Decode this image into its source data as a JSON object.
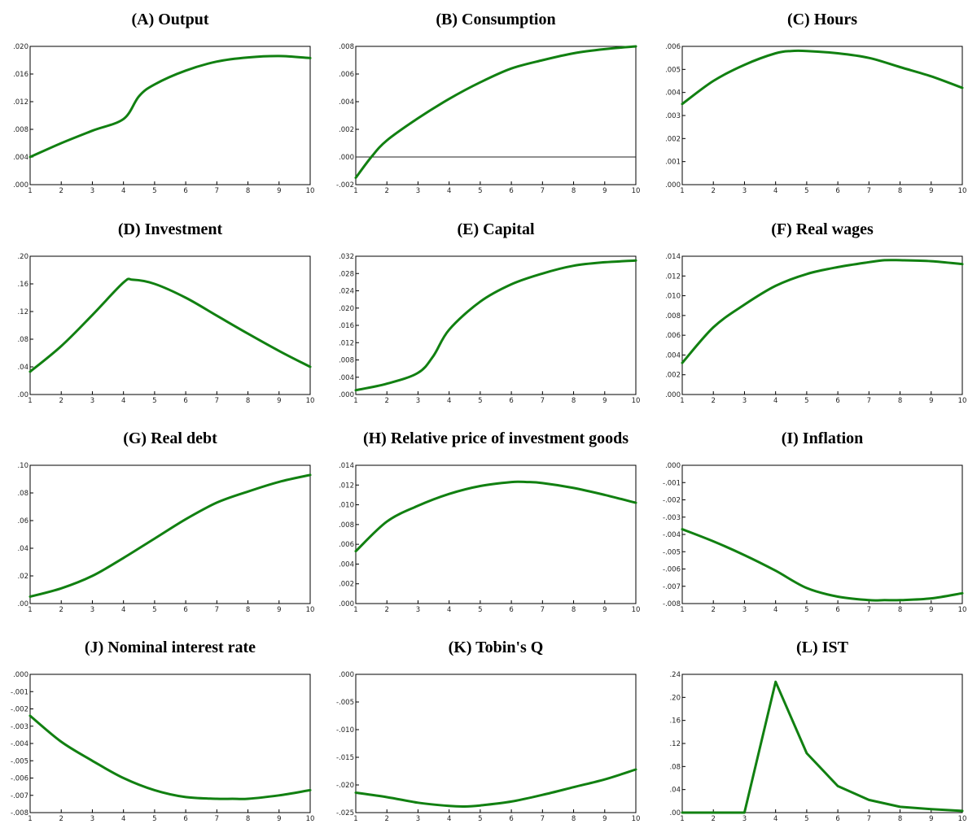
{
  "chart_data": [
    {
      "type": "line",
      "title": "(A) Output",
      "x": [
        1,
        2,
        3,
        4,
        4.5,
        5,
        6,
        7,
        8,
        9,
        10
      ],
      "y": [
        0.004,
        0.006,
        0.0078,
        0.0095,
        0.0128,
        0.0145,
        0.0165,
        0.0178,
        0.0184,
        0.0186,
        0.0183
      ],
      "xticks": [
        "1",
        "2",
        "3",
        "4",
        "5",
        "6",
        "7",
        "8",
        "9",
        "10"
      ],
      "yticks": [
        ".000",
        ".004",
        ".008",
        ".012",
        ".016",
        ".020"
      ],
      "ylim": [
        0,
        0.02
      ],
      "zero_line": false
    },
    {
      "type": "line",
      "title": "(B) Consumption",
      "x": [
        1,
        1.5,
        2,
        3,
        4,
        5,
        6,
        7,
        8,
        9,
        10
      ],
      "y": [
        -0.0015,
        0.0,
        0.0012,
        0.0028,
        0.0042,
        0.0054,
        0.0064,
        0.007,
        0.0075,
        0.0078,
        0.008
      ],
      "xticks": [
        "1",
        "2",
        "3",
        "4",
        "5",
        "6",
        "7",
        "8",
        "9",
        "10"
      ],
      "yticks": [
        "-.002",
        ".000",
        ".002",
        ".004",
        ".006",
        ".008"
      ],
      "ylim": [
        -0.002,
        0.008
      ],
      "zero_line": true
    },
    {
      "type": "line",
      "title": "(C) Hours",
      "x": [
        1,
        2,
        3,
        4,
        4.5,
        5,
        6,
        7,
        8,
        9,
        10
      ],
      "y": [
        0.0035,
        0.0045,
        0.0052,
        0.0057,
        0.0058,
        0.0058,
        0.0057,
        0.0055,
        0.0051,
        0.0047,
        0.0042
      ],
      "xticks": [
        "1",
        "2",
        "3",
        "4",
        "5",
        "6",
        "7",
        "8",
        "9",
        "10"
      ],
      "yticks": [
        ".000",
        ".001",
        ".002",
        ".003",
        ".004",
        ".005",
        ".006"
      ],
      "ylim": [
        0,
        0.006
      ],
      "zero_line": false
    },
    {
      "type": "line",
      "title": "(D) Investment",
      "x": [
        1,
        2,
        3,
        4,
        4.3,
        5,
        6,
        7,
        8,
        9,
        10
      ],
      "y": [
        0.033,
        0.07,
        0.115,
        0.162,
        0.166,
        0.16,
        0.14,
        0.114,
        0.088,
        0.063,
        0.04
      ],
      "xticks": [
        "1",
        "2",
        "3",
        "4",
        "5",
        "6",
        "7",
        "8",
        "9",
        "10"
      ],
      "yticks": [
        ".00",
        ".04",
        ".08",
        ".12",
        ".16",
        ".20"
      ],
      "ylim": [
        0,
        0.2
      ],
      "zero_line": false
    },
    {
      "type": "line",
      "title": "(E) Capital",
      "x": [
        1,
        2,
        3,
        3.5,
        4,
        5,
        6,
        7,
        8,
        9,
        10
      ],
      "y": [
        0.001,
        0.0025,
        0.005,
        0.009,
        0.015,
        0.0215,
        0.0255,
        0.028,
        0.0298,
        0.0306,
        0.031
      ],
      "xticks": [
        "1",
        "2",
        "3",
        "4",
        "5",
        "6",
        "7",
        "8",
        "9",
        "10"
      ],
      "yticks": [
        ".000",
        ".004",
        ".008",
        ".012",
        ".016",
        ".020",
        ".024",
        ".028",
        ".032"
      ],
      "ylim": [
        0,
        0.032
      ],
      "zero_line": false
    },
    {
      "type": "line",
      "title": "(F) Real wages",
      "x": [
        1,
        2,
        3,
        4,
        5,
        6,
        7,
        7.5,
        8,
        9,
        10
      ],
      "y": [
        0.0032,
        0.0068,
        0.0091,
        0.011,
        0.0122,
        0.0129,
        0.0134,
        0.0136,
        0.0136,
        0.0135,
        0.0132
      ],
      "xticks": [
        "1",
        "2",
        "3",
        "4",
        "5",
        "6",
        "7",
        "8",
        "9",
        "10"
      ],
      "yticks": [
        ".000",
        ".002",
        ".004",
        ".006",
        ".008",
        ".010",
        ".012",
        ".014"
      ],
      "ylim": [
        0,
        0.014
      ],
      "zero_line": false
    },
    {
      "type": "line",
      "title": "(G) Real debt",
      "x": [
        1,
        2,
        3,
        4,
        5,
        6,
        7,
        8,
        9,
        10
      ],
      "y": [
        0.005,
        0.011,
        0.02,
        0.033,
        0.047,
        0.061,
        0.073,
        0.081,
        0.088,
        0.093
      ],
      "xticks": [
        "1",
        "2",
        "3",
        "4",
        "5",
        "6",
        "7",
        "8",
        "9",
        "10"
      ],
      "yticks": [
        ".00",
        ".02",
        ".04",
        ".06",
        ".08",
        ".10"
      ],
      "ylim": [
        0,
        0.1
      ],
      "zero_line": false
    },
    {
      "type": "line",
      "title": "(H) Relative price of investment goods",
      "x": [
        1,
        2,
        3,
        4,
        5,
        6,
        6.5,
        7,
        8,
        9,
        10
      ],
      "y": [
        0.0053,
        0.0083,
        0.0099,
        0.0111,
        0.0119,
        0.0123,
        0.0123,
        0.0122,
        0.0117,
        0.011,
        0.0102
      ],
      "xticks": [
        "1",
        "2",
        "3",
        "4",
        "5",
        "6",
        "7",
        "8",
        "9",
        "10"
      ],
      "yticks": [
        ".000",
        ".002",
        ".004",
        ".006",
        ".008",
        ".010",
        ".012",
        ".014"
      ],
      "ylim": [
        0,
        0.014
      ],
      "zero_line": false
    },
    {
      "type": "line",
      "title": "(I) Inflation",
      "x": [
        1,
        2,
        3,
        4,
        5,
        6,
        7,
        7.5,
        8,
        9,
        10
      ],
      "y": [
        -0.0037,
        -0.0044,
        -0.0052,
        -0.0061,
        -0.0071,
        -0.0076,
        -0.0078,
        -0.0078,
        -0.0078,
        -0.0077,
        -0.0074
      ],
      "xticks": [
        "1",
        "2",
        "3",
        "4",
        "5",
        "6",
        "7",
        "8",
        "9",
        "10"
      ],
      "yticks": [
        "-.008",
        "-.007",
        "-.006",
        "-.005",
        "-.004",
        "-.003",
        "-.002",
        "-.001",
        ".000"
      ],
      "ylim": [
        -0.008,
        0
      ],
      "zero_line": false
    },
    {
      "type": "line",
      "title": "(J) Nominal interest rate",
      "x": [
        1,
        2,
        3,
        4,
        5,
        6,
        7,
        7.5,
        8,
        9,
        10
      ],
      "y": [
        -0.0024,
        -0.0039,
        -0.005,
        -0.006,
        -0.0067,
        -0.0071,
        -0.0072,
        -0.0072,
        -0.0072,
        -0.007,
        -0.0067
      ],
      "xticks": [
        "1",
        "2",
        "3",
        "4",
        "5",
        "6",
        "7",
        "8",
        "9",
        "10"
      ],
      "yticks": [
        "-.008",
        "-.007",
        "-.006",
        "-.005",
        "-.004",
        "-.003",
        "-.002",
        "-.001",
        ".000"
      ],
      "ylim": [
        -0.008,
        0
      ],
      "zero_line": false
    },
    {
      "type": "line",
      "title": "(K) Tobin's Q",
      "x": [
        1,
        2,
        3,
        4,
        4.5,
        5,
        6,
        7,
        8,
        9,
        10
      ],
      "y": [
        -0.0214,
        -0.0222,
        -0.0232,
        -0.0238,
        -0.0239,
        -0.0237,
        -0.023,
        -0.0218,
        -0.0204,
        -0.019,
        -0.0172
      ],
      "xticks": [
        "1",
        "2",
        "3",
        "4",
        "5",
        "6",
        "7",
        "8",
        "9",
        "10"
      ],
      "yticks": [
        "-.025",
        "-.020",
        "-.015",
        "-.010",
        "-.005",
        ".000"
      ],
      "ylim": [
        -0.025,
        0
      ],
      "zero_line": false
    },
    {
      "type": "line",
      "title": "(L) IST",
      "x": [
        1,
        2,
        3,
        4,
        5,
        6,
        7,
        8,
        9,
        10
      ],
      "y": [
        0.0,
        0.0,
        0.0,
        0.227,
        0.103,
        0.046,
        0.022,
        0.01,
        0.006,
        0.003
      ],
      "xticks": [
        "1",
        "2",
        "3",
        "4",
        "5",
        "6",
        "7",
        "8",
        "9",
        "10"
      ],
      "yticks": [
        ".00",
        ".04",
        ".08",
        ".12",
        ".16",
        ".20",
        ".24"
      ],
      "ylim": [
        0,
        0.24
      ],
      "zero_line": false
    }
  ],
  "colors": {
    "series": "#118011",
    "frame": "#000000",
    "zero_line": "#222222"
  }
}
